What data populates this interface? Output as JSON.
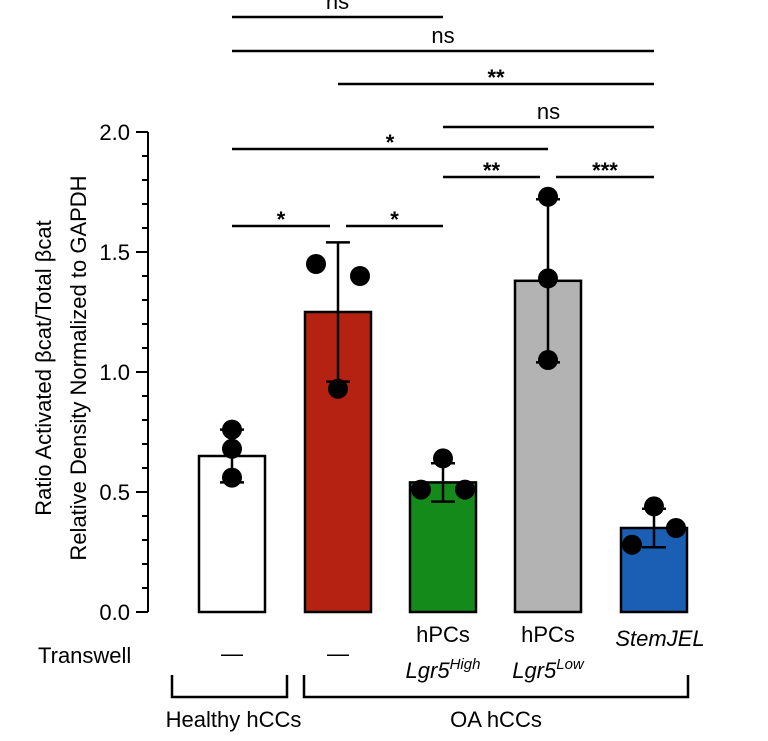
{
  "chart_data": {
    "type": "bar",
    "ylabel_lines": [
      "Ratio Activated βcat/Total βcat",
      "Relative Density Normalized to GAPDH"
    ],
    "ylim": [
      0,
      2.0
    ],
    "yticks": [
      "0.0",
      "0.5",
      "1.0",
      "1.5",
      "2.0"
    ],
    "bars": [
      {
        "mean": 0.65,
        "err": 0.11,
        "points": [
          0.76,
          0.68,
          0.56
        ],
        "color": "#ffffff",
        "jitter": [
          0,
          0,
          0
        ]
      },
      {
        "mean": 1.25,
        "err": 0.29,
        "points": [
          1.45,
          1.4,
          0.93
        ],
        "color": "#b52212",
        "jitter": [
          -1,
          1,
          0
        ]
      },
      {
        "mean": 0.54,
        "err": 0.08,
        "points": [
          0.64,
          0.51,
          0.51
        ],
        "color": "#148a1a",
        "jitter": [
          0,
          -1,
          1
        ]
      },
      {
        "mean": 1.38,
        "err": 0.34,
        "points": [
          1.73,
          1.39,
          1.05
        ],
        "color": "#b3b3b3",
        "jitter": [
          0,
          0,
          0
        ]
      },
      {
        "mean": 0.35,
        "err": 0.08,
        "points": [
          0.44,
          0.35,
          0.28
        ],
        "color": "#1a5fb4",
        "jitter": [
          0,
          1,
          -1
        ]
      }
    ],
    "transwell_label": "Transwell",
    "transwell": [
      {
        "dash": "—"
      },
      {
        "dash": "—"
      },
      {
        "line1": "hPCs",
        "line2": "Lgr5",
        "sup": "High"
      },
      {
        "line1": "hPCs",
        "line2": "Lgr5",
        "sup": "Low"
      },
      {
        "line1": "StemJEL"
      }
    ],
    "groups": [
      {
        "label": "Healthy hCCs",
        "bars": [
          0,
          0
        ]
      },
      {
        "label": "OA hCCs",
        "bars": [
          1,
          4
        ]
      }
    ],
    "comparisons": [
      {
        "from": 0,
        "to": 2,
        "label": "ns"
      },
      {
        "from": 0,
        "to": 4,
        "label": "ns"
      },
      {
        "from": 1,
        "to": 4,
        "label": "**"
      },
      {
        "from": 2,
        "to": 4,
        "label": "ns"
      },
      {
        "from": 0,
        "to": 3,
        "label": "*"
      },
      {
        "from": 2,
        "to": 3,
        "label": "**"
      },
      {
        "from": 3,
        "to": 4,
        "label": "***"
      },
      {
        "from": 0,
        "to": 1,
        "label": "*"
      },
      {
        "from": 1,
        "to": 2,
        "label": "*"
      }
    ]
  }
}
